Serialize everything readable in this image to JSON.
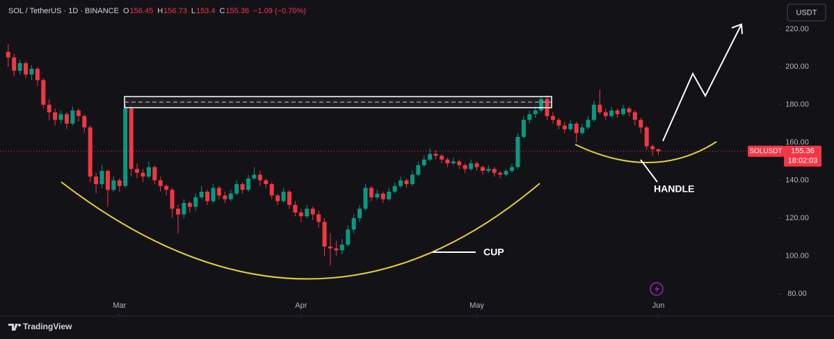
{
  "chart_data": {
    "type": "candlestick",
    "header": {
      "symbol": "SOL / TetherUS · 1D · BINANCE",
      "labels": [
        "O",
        "H",
        "L",
        "C"
      ],
      "change": "−1.09 (−0.70%)"
    },
    "up_color": "#089981",
    "down_color": "#f23645",
    "grid": false,
    "ylim": [
      68.2,
      235.4
    ],
    "yticks": [
      {
        "value": 80,
        "label": "80.00"
      },
      {
        "value": 100,
        "label": "100.00"
      },
      {
        "value": 120,
        "label": "120.00"
      },
      {
        "value": 140,
        "label": "140.00"
      },
      {
        "value": 160,
        "label": "160.00"
      },
      {
        "value": 180,
        "label": "180.00"
      },
      {
        "value": 200,
        "label": "200.00"
      },
      {
        "value": 220,
        "label": "220.00"
      }
    ],
    "xlim": [
      -1.4,
      131.6
    ],
    "xticks": [
      {
        "value": 19,
        "label": "Mar"
      },
      {
        "value": 50,
        "label": "Apr"
      },
      {
        "value": 80,
        "label": "May"
      },
      {
        "value": 111,
        "label": "Jun"
      }
    ],
    "candles": [
      [
        208,
        212,
        200,
        205
      ],
      [
        205,
        207,
        195,
        198
      ],
      [
        198,
        204,
        196,
        202
      ],
      [
        202,
        203,
        194,
        196
      ],
      [
        196,
        201,
        193,
        199
      ],
      [
        199,
        200,
        190,
        193
      ],
      [
        193,
        194,
        178,
        180
      ],
      [
        180,
        183,
        172,
        176
      ],
      [
        176,
        178,
        169,
        172
      ],
      [
        172,
        177,
        170,
        175
      ],
      [
        175,
        176,
        167,
        170
      ],
      [
        170,
        179,
        169,
        177
      ],
      [
        177,
        178,
        171,
        174
      ],
      [
        174,
        175,
        165,
        168
      ],
      [
        168,
        169,
        139,
        142
      ],
      [
        142,
        144,
        133,
        138
      ],
      [
        138,
        148,
        136,
        145
      ],
      [
        145,
        146,
        126,
        135
      ],
      [
        135,
        142,
        134,
        140
      ],
      [
        140,
        141,
        134,
        137
      ],
      [
        137,
        180,
        136,
        178
      ],
      [
        178,
        179,
        142,
        146
      ],
      [
        146,
        149,
        141,
        144
      ],
      [
        144,
        146,
        139,
        142
      ],
      [
        142,
        150,
        141,
        147
      ],
      [
        147,
        148,
        138,
        140
      ],
      [
        140,
        142,
        134,
        137
      ],
      [
        137,
        138,
        132,
        135
      ],
      [
        135,
        136,
        120,
        125
      ],
      [
        125,
        127,
        112,
        122
      ],
      [
        122,
        130,
        120,
        128
      ],
      [
        128,
        129,
        123,
        126
      ],
      [
        126,
        133,
        124,
        131
      ],
      [
        131,
        137,
        130,
        134
      ],
      [
        134,
        135,
        127,
        129
      ],
      [
        129,
        138,
        128,
        136
      ],
      [
        136,
        137,
        130,
        132
      ],
      [
        132,
        134,
        128,
        130
      ],
      [
        130,
        135,
        129,
        133
      ],
      [
        133,
        140,
        132,
        138
      ],
      [
        138,
        139,
        133,
        135
      ],
      [
        135,
        143,
        134,
        141
      ],
      [
        141,
        147,
        140,
        143
      ],
      [
        143,
        145,
        137,
        140
      ],
      [
        140,
        141,
        136,
        138
      ],
      [
        138,
        139,
        130,
        132
      ],
      [
        132,
        133,
        127,
        129
      ],
      [
        129,
        136,
        128,
        134
      ],
      [
        134,
        135,
        125,
        127
      ],
      [
        127,
        129,
        121,
        123
      ],
      [
        123,
        125,
        118,
        121
      ],
      [
        121,
        127,
        120,
        125
      ],
      [
        125,
        126,
        119,
        122
      ],
      [
        122,
        124,
        115,
        118
      ],
      [
        118,
        120,
        100,
        105
      ],
      [
        105,
        112,
        95,
        104
      ],
      [
        104,
        108,
        100,
        103
      ],
      [
        103,
        109,
        101,
        106
      ],
      [
        106,
        116,
        105,
        114
      ],
      [
        114,
        122,
        112,
        120
      ],
      [
        120,
        127,
        118,
        125
      ],
      [
        125,
        138,
        124,
        136
      ],
      [
        136,
        137,
        129,
        131
      ],
      [
        131,
        135,
        130,
        133
      ],
      [
        133,
        134,
        128,
        130
      ],
      [
        130,
        136,
        129,
        134
      ],
      [
        134,
        139,
        133,
        137
      ],
      [
        137,
        142,
        136,
        140
      ],
      [
        140,
        141,
        136,
        138
      ],
      [
        138,
        145,
        137,
        143
      ],
      [
        143,
        150,
        142,
        148
      ],
      [
        148,
        153,
        147,
        151
      ],
      [
        151,
        157,
        150,
        154
      ],
      [
        154,
        156,
        151,
        153
      ],
      [
        153,
        154,
        149,
        151
      ],
      [
        151,
        152,
        147,
        149
      ],
      [
        149,
        152,
        148,
        150
      ],
      [
        150,
        151,
        146,
        148
      ],
      [
        148,
        149,
        144,
        146
      ],
      [
        146,
        151,
        145,
        149
      ],
      [
        149,
        150,
        145,
        147
      ],
      [
        147,
        148,
        143,
        145
      ],
      [
        145,
        148,
        144,
        146
      ],
      [
        146,
        147,
        142,
        144
      ],
      [
        144,
        145,
        141,
        143
      ],
      [
        143,
        146,
        142,
        145
      ],
      [
        145,
        149,
        144,
        147
      ],
      [
        147,
        165,
        146,
        163
      ],
      [
        163,
        174,
        162,
        172
      ],
      [
        172,
        177,
        170,
        175
      ],
      [
        175,
        179,
        173,
        177
      ],
      [
        177,
        184,
        176,
        183
      ],
      [
        183,
        185,
        172,
        174
      ],
      [
        174,
        176,
        170,
        172
      ],
      [
        172,
        173,
        167,
        169
      ],
      [
        169,
        171,
        165,
        167
      ],
      [
        167,
        172,
        166,
        170
      ],
      [
        170,
        171,
        160,
        165
      ],
      [
        165,
        170,
        164,
        168
      ],
      [
        168,
        174,
        167,
        172
      ],
      [
        172,
        182,
        171,
        180
      ],
      [
        180,
        188,
        175,
        176
      ],
      [
        176,
        178,
        172,
        174
      ],
      [
        174,
        179,
        173,
        177
      ],
      [
        177,
        178,
        173,
        175
      ],
      [
        175,
        180,
        174,
        178
      ],
      [
        178,
        179,
        174,
        176
      ],
      [
        176,
        177,
        169,
        172
      ],
      [
        172,
        173,
        165,
        168
      ],
      [
        168,
        169,
        156,
        158
      ],
      [
        158,
        159,
        153,
        156.45
      ],
      [
        156.45,
        156.73,
        153.4,
        155.36
      ]
    ],
    "annotations": [
      "CUP",
      "HANDLE"
    ]
  },
  "ui": {
    "currency_button": "USDT",
    "symbol_tag": "SOLUSDT",
    "countdown": "18:02:03",
    "brand": "TradingView"
  }
}
